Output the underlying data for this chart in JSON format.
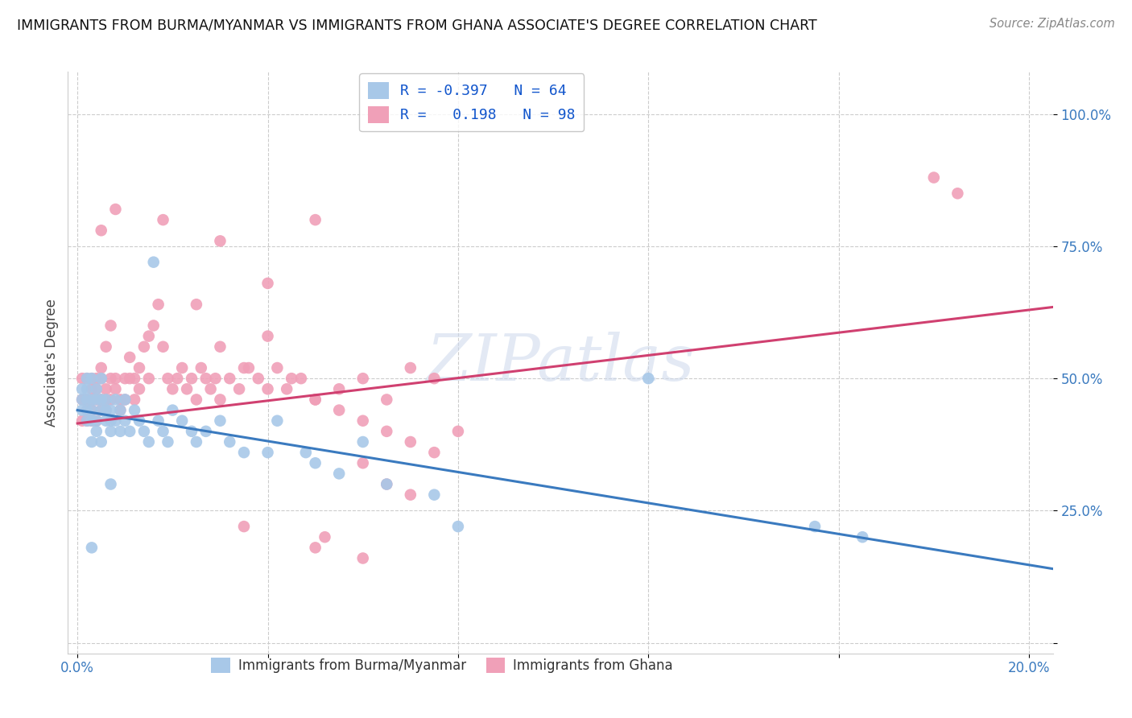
{
  "title": "IMMIGRANTS FROM BURMA/MYANMAR VS IMMIGRANTS FROM GHANA ASSOCIATE'S DEGREE CORRELATION CHART",
  "source": "Source: ZipAtlas.com",
  "ylabel": "Associate's Degree",
  "xlim": [
    -0.002,
    0.205
  ],
  "ylim": [
    -0.02,
    1.08
  ],
  "blue_R": -0.397,
  "blue_N": 64,
  "pink_R": 0.198,
  "pink_N": 98,
  "blue_color": "#a8c8e8",
  "pink_color": "#f0a0b8",
  "blue_line_color": "#3a7abf",
  "pink_line_color": "#d04070",
  "watermark": "ZIPatlas",
  "blue_line_x0": 0.0,
  "blue_line_y0": 0.44,
  "blue_line_x1": 0.205,
  "blue_line_y1": 0.14,
  "pink_line_x0": 0.0,
  "pink_line_y0": 0.415,
  "pink_line_x1": 0.205,
  "pink_line_y1": 0.635,
  "blue_points_x": [
    0.001,
    0.001,
    0.001,
    0.002,
    0.002,
    0.002,
    0.002,
    0.002,
    0.003,
    0.003,
    0.003,
    0.003,
    0.003,
    0.004,
    0.004,
    0.004,
    0.004,
    0.005,
    0.005,
    0.005,
    0.005,
    0.006,
    0.006,
    0.006,
    0.007,
    0.007,
    0.007,
    0.008,
    0.008,
    0.009,
    0.009,
    0.01,
    0.01,
    0.011,
    0.012,
    0.013,
    0.014,
    0.015,
    0.016,
    0.017,
    0.018,
    0.019,
    0.02,
    0.022,
    0.024,
    0.025,
    0.027,
    0.03,
    0.032,
    0.035,
    0.04,
    0.042,
    0.048,
    0.05,
    0.055,
    0.06,
    0.065,
    0.075,
    0.08,
    0.12,
    0.155,
    0.165,
    0.003,
    0.007
  ],
  "blue_points_y": [
    0.46,
    0.44,
    0.48,
    0.5,
    0.46,
    0.42,
    0.44,
    0.48,
    0.46,
    0.42,
    0.5,
    0.44,
    0.38,
    0.46,
    0.42,
    0.48,
    0.4,
    0.44,
    0.46,
    0.5,
    0.38,
    0.42,
    0.44,
    0.46,
    0.42,
    0.4,
    0.44,
    0.46,
    0.42,
    0.44,
    0.4,
    0.42,
    0.46,
    0.4,
    0.44,
    0.42,
    0.4,
    0.38,
    0.72,
    0.42,
    0.4,
    0.38,
    0.44,
    0.42,
    0.4,
    0.38,
    0.4,
    0.42,
    0.38,
    0.36,
    0.36,
    0.42,
    0.36,
    0.34,
    0.32,
    0.38,
    0.3,
    0.28,
    0.22,
    0.5,
    0.22,
    0.2,
    0.18,
    0.3
  ],
  "pink_points_x": [
    0.001,
    0.001,
    0.001,
    0.002,
    0.002,
    0.002,
    0.002,
    0.003,
    0.003,
    0.003,
    0.003,
    0.003,
    0.004,
    0.004,
    0.004,
    0.004,
    0.005,
    0.005,
    0.005,
    0.005,
    0.006,
    0.006,
    0.006,
    0.006,
    0.007,
    0.007,
    0.007,
    0.008,
    0.008,
    0.009,
    0.009,
    0.01,
    0.01,
    0.011,
    0.011,
    0.012,
    0.012,
    0.013,
    0.013,
    0.014,
    0.015,
    0.015,
    0.016,
    0.017,
    0.018,
    0.019,
    0.02,
    0.021,
    0.022,
    0.023,
    0.024,
    0.025,
    0.026,
    0.027,
    0.028,
    0.029,
    0.03,
    0.032,
    0.034,
    0.036,
    0.038,
    0.04,
    0.042,
    0.044,
    0.047,
    0.05,
    0.055,
    0.06,
    0.065,
    0.07,
    0.075,
    0.025,
    0.03,
    0.035,
    0.04,
    0.045,
    0.05,
    0.055,
    0.06,
    0.065,
    0.07,
    0.075,
    0.08,
    0.04,
    0.06,
    0.065,
    0.07,
    0.18,
    0.03,
    0.05,
    0.005,
    0.008,
    0.05,
    0.06,
    0.052,
    0.035,
    0.018,
    0.185
  ],
  "pink_points_y": [
    0.46,
    0.5,
    0.42,
    0.44,
    0.5,
    0.46,
    0.42,
    0.48,
    0.5,
    0.44,
    0.46,
    0.42,
    0.5,
    0.46,
    0.42,
    0.48,
    0.5,
    0.44,
    0.46,
    0.52,
    0.48,
    0.44,
    0.46,
    0.56,
    0.5,
    0.6,
    0.46,
    0.48,
    0.5,
    0.44,
    0.46,
    0.5,
    0.46,
    0.5,
    0.54,
    0.5,
    0.46,
    0.52,
    0.48,
    0.56,
    0.5,
    0.58,
    0.6,
    0.64,
    0.56,
    0.5,
    0.48,
    0.5,
    0.52,
    0.48,
    0.5,
    0.46,
    0.52,
    0.5,
    0.48,
    0.5,
    0.46,
    0.5,
    0.48,
    0.52,
    0.5,
    0.48,
    0.52,
    0.48,
    0.5,
    0.46,
    0.48,
    0.5,
    0.46,
    0.52,
    0.5,
    0.64,
    0.56,
    0.52,
    0.58,
    0.5,
    0.46,
    0.44,
    0.42,
    0.4,
    0.38,
    0.36,
    0.4,
    0.68,
    0.34,
    0.3,
    0.28,
    0.88,
    0.76,
    0.8,
    0.78,
    0.82,
    0.18,
    0.16,
    0.2,
    0.22,
    0.8,
    0.85
  ]
}
